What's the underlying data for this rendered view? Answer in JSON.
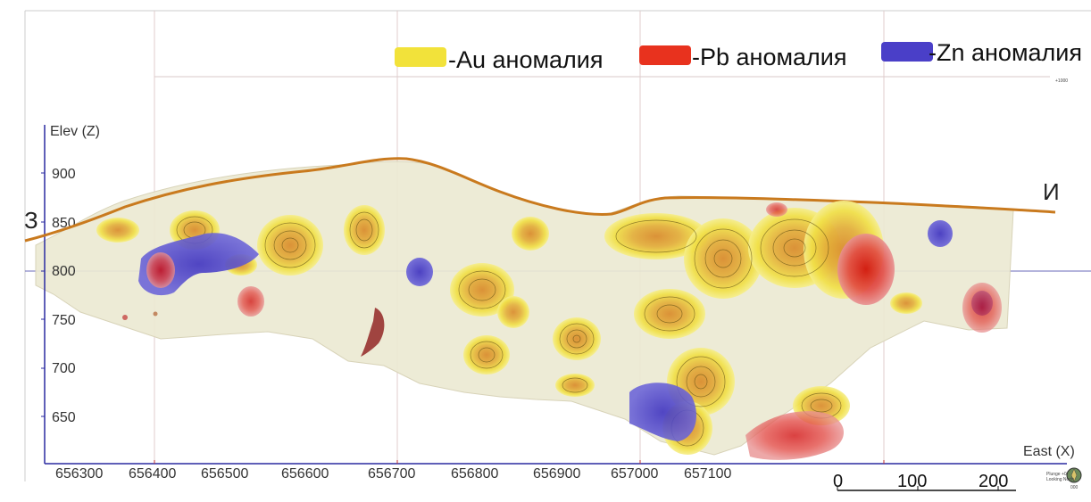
{
  "legend": {
    "items": [
      {
        "label": "-Au аномалия",
        "color": "#f2e23a"
      },
      {
        "label": "-Pb аномалия",
        "color": "#e8321e"
      },
      {
        "label": "-Zn аномалия",
        "color": "#4a3fc8"
      }
    ]
  },
  "axes": {
    "y_title": "Elev (Z)",
    "x_title": "East (X)",
    "y_ticks": [
      "900",
      "850",
      "800",
      "750",
      "700",
      "650"
    ],
    "x_ticks": [
      "656300",
      "656400",
      "656500",
      "656600",
      "656700",
      "656800",
      "656900",
      "657000",
      "657100"
    ]
  },
  "section_ends": {
    "left": "З",
    "right": "И"
  },
  "scale_bar": {
    "labels": [
      "0",
      "100",
      "200"
    ]
  },
  "compass": {
    "caption_line1": "Plunge +0",
    "caption_line2": "Looking North",
    "caption_line3": "000"
  },
  "corner_label": "+1000",
  "colors": {
    "topography": "#c97a1e",
    "au_anomaly": "#f2e23a",
    "pb_anomaly": "#e8321e",
    "zn_anomaly": "#4a3fc8",
    "model_body": "#ece9d2"
  }
}
